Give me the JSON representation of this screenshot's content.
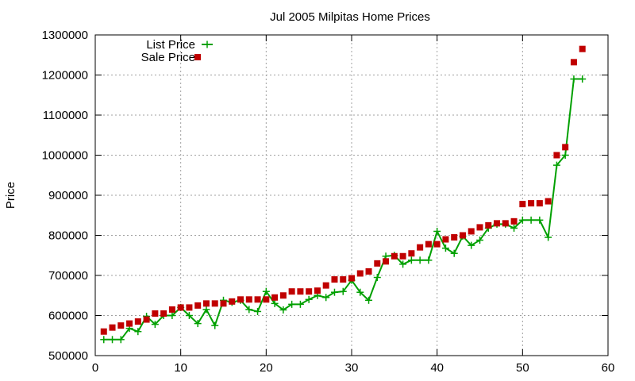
{
  "chart_data": {
    "type": "line",
    "title": "Jul 2005 Milpitas Home Prices",
    "xlabel": "",
    "ylabel": "Price",
    "xlim": [
      0,
      60
    ],
    "ylim": [
      500000,
      1300000
    ],
    "x_ticks": [
      0,
      10,
      20,
      30,
      40,
      50,
      60
    ],
    "y_ticks": [
      500000,
      600000,
      700000,
      800000,
      900000,
      1000000,
      1100000,
      1200000,
      1300000
    ],
    "grid": true,
    "legend_position": "top-left",
    "series": [
      {
        "name": "List Price",
        "style": "line-plus",
        "color": "#00a000",
        "points": [
          [
            1,
            540000
          ],
          [
            2,
            540000
          ],
          [
            3,
            540000
          ],
          [
            4,
            568000
          ],
          [
            5,
            560000
          ],
          [
            6,
            598000
          ],
          [
            7,
            578000
          ],
          [
            8,
            600000
          ],
          [
            9,
            600000
          ],
          [
            10,
            620000
          ],
          [
            11,
            600000
          ],
          [
            12,
            580000
          ],
          [
            13,
            615000
          ],
          [
            14,
            575000
          ],
          [
            15,
            638000
          ],
          [
            16,
            633000
          ],
          [
            17,
            638000
          ],
          [
            18,
            615000
          ],
          [
            19,
            610000
          ],
          [
            20,
            660000
          ],
          [
            21,
            630000
          ],
          [
            22,
            614000
          ],
          [
            23,
            628000
          ],
          [
            24,
            628000
          ],
          [
            25,
            640000
          ],
          [
            26,
            650000
          ],
          [
            27,
            645000
          ],
          [
            28,
            658000
          ],
          [
            29,
            660000
          ],
          [
            30,
            688000
          ],
          [
            31,
            658000
          ],
          [
            32,
            638000
          ],
          [
            33,
            695000
          ],
          [
            34,
            748000
          ],
          [
            35,
            750000
          ],
          [
            36,
            728000
          ],
          [
            37,
            738000
          ],
          [
            38,
            738000
          ],
          [
            39,
            738000
          ],
          [
            40,
            810000
          ],
          [
            41,
            768000
          ],
          [
            42,
            755000
          ],
          [
            43,
            798000
          ],
          [
            44,
            775000
          ],
          [
            45,
            788000
          ],
          [
            46,
            818000
          ],
          [
            47,
            828000
          ],
          [
            48,
            828000
          ],
          [
            49,
            818000
          ],
          [
            50,
            838000
          ],
          [
            51,
            838000
          ],
          [
            52,
            838000
          ],
          [
            53,
            795000
          ],
          [
            54,
            975000
          ],
          [
            55,
            1000000
          ],
          [
            56,
            1190000
          ],
          [
            57,
            1190000
          ]
        ]
      },
      {
        "name": "Sale Price",
        "style": "square-markers",
        "color": "#c00000",
        "points": [
          [
            1,
            560000
          ],
          [
            2,
            570000
          ],
          [
            3,
            575000
          ],
          [
            4,
            580000
          ],
          [
            5,
            585000
          ],
          [
            6,
            590000
          ],
          [
            7,
            605000
          ],
          [
            8,
            605000
          ],
          [
            9,
            615000
          ],
          [
            10,
            620000
          ],
          [
            11,
            620000
          ],
          [
            12,
            625000
          ],
          [
            13,
            630000
          ],
          [
            14,
            630000
          ],
          [
            15,
            630000
          ],
          [
            16,
            635000
          ],
          [
            17,
            640000
          ],
          [
            18,
            640000
          ],
          [
            19,
            640000
          ],
          [
            20,
            640000
          ],
          [
            21,
            645000
          ],
          [
            22,
            650000
          ],
          [
            23,
            660000
          ],
          [
            24,
            660000
          ],
          [
            25,
            660000
          ],
          [
            26,
            662000
          ],
          [
            27,
            675000
          ],
          [
            28,
            690000
          ],
          [
            29,
            690000
          ],
          [
            30,
            693000
          ],
          [
            31,
            705000
          ],
          [
            32,
            710000
          ],
          [
            33,
            730000
          ],
          [
            34,
            735000
          ],
          [
            35,
            748000
          ],
          [
            36,
            748000
          ],
          [
            37,
            755000
          ],
          [
            38,
            770000
          ],
          [
            39,
            778000
          ],
          [
            40,
            778000
          ],
          [
            41,
            790000
          ],
          [
            42,
            795000
          ],
          [
            43,
            800000
          ],
          [
            44,
            810000
          ],
          [
            45,
            820000
          ],
          [
            46,
            825000
          ],
          [
            47,
            830000
          ],
          [
            48,
            830000
          ],
          [
            49,
            835000
          ],
          [
            50,
            878000
          ],
          [
            51,
            880000
          ],
          [
            52,
            880000
          ],
          [
            53,
            885000
          ],
          [
            54,
            1000000
          ],
          [
            55,
            1020000
          ],
          [
            56,
            1232000
          ],
          [
            57,
            1265000
          ]
        ]
      }
    ]
  }
}
